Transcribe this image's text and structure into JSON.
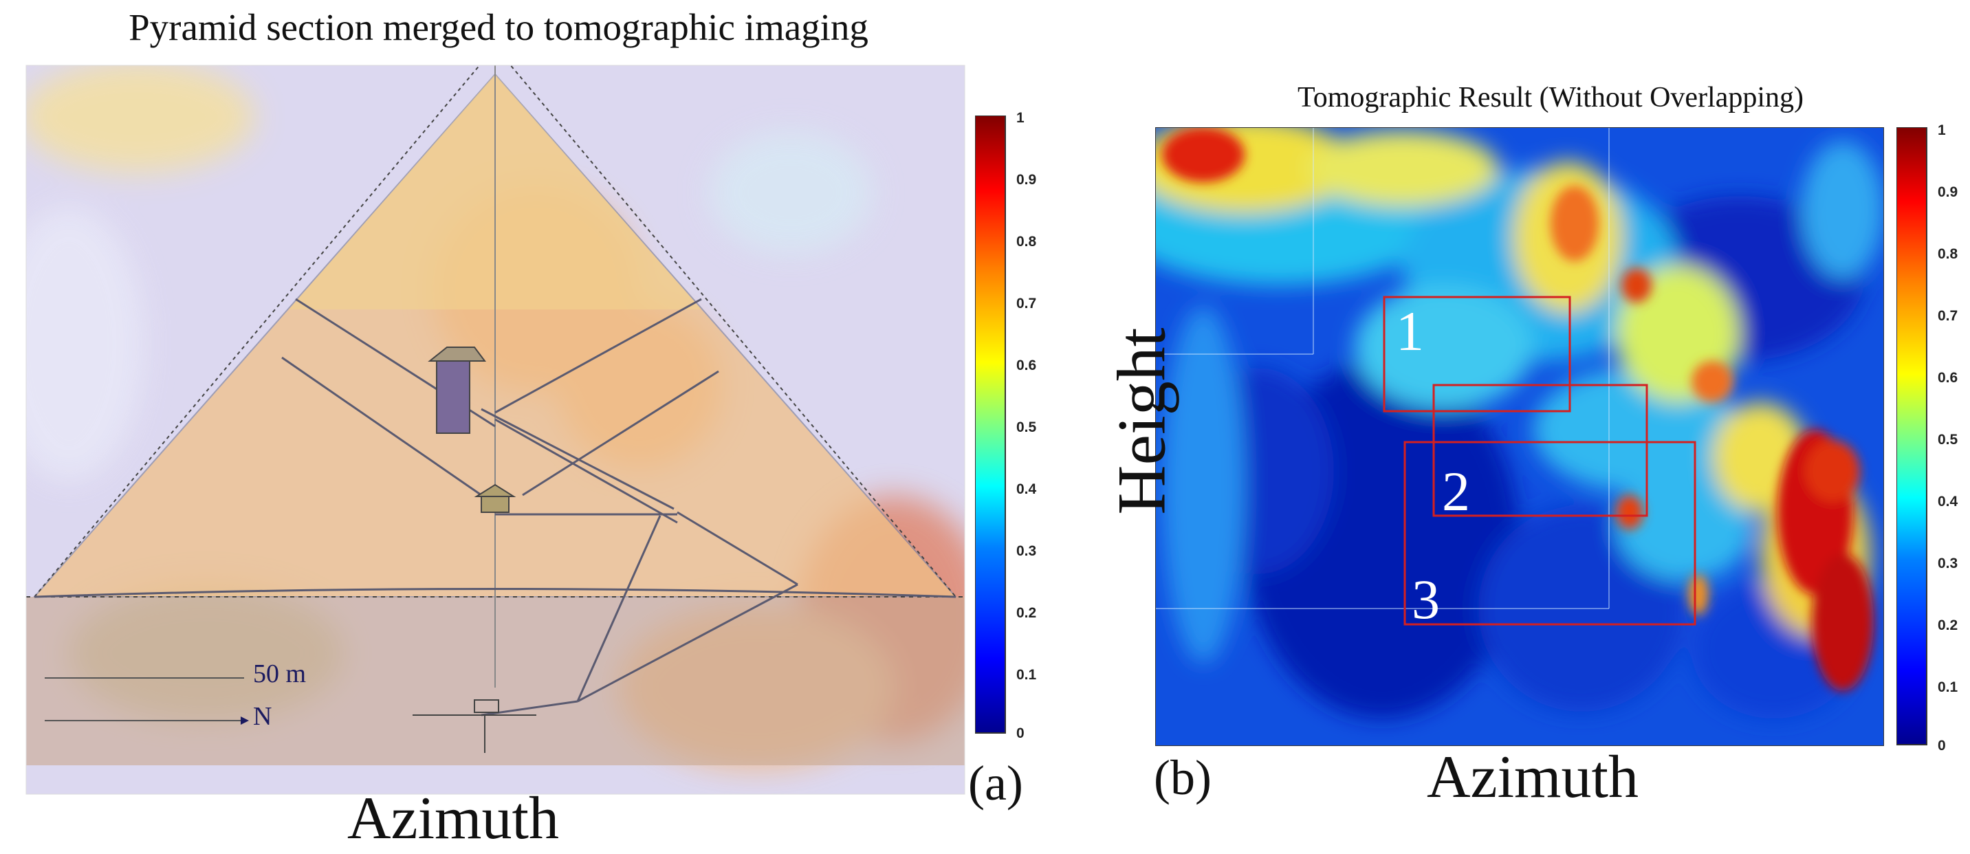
{
  "figure": {
    "panel_a": {
      "title": "Pyramid section merged to tomographic imaging",
      "xlabel": "Azimuth",
      "label": "(a)",
      "scale_text": "50 m",
      "north_text": "N",
      "colorbar": {
        "ticks": [
          "1",
          "0.9",
          "0.8",
          "0.7",
          "0.6",
          "0.5",
          "0.4",
          "0.3",
          "0.2",
          "0.1",
          "0"
        ]
      }
    },
    "panel_b": {
      "title": "Tomographic Result (Without Overlapping)",
      "xlabel": "Azimuth",
      "ylabel": "Height",
      "label": "(b)",
      "regions": [
        "1",
        "2",
        "3"
      ],
      "colorbar": {
        "ticks": [
          "1",
          "0.9",
          "0.8",
          "0.7",
          "0.6",
          "0.5",
          "0.4",
          "0.3",
          "0.2",
          "0.1",
          "0"
        ]
      }
    }
  },
  "colors": {
    "jet": [
      "#00008f",
      "#0000ff",
      "#0080ff",
      "#00ffff",
      "#80ff80",
      "#ffff00",
      "#ff8000",
      "#ff0000",
      "#800000"
    ],
    "region_box": "#d42020"
  }
}
